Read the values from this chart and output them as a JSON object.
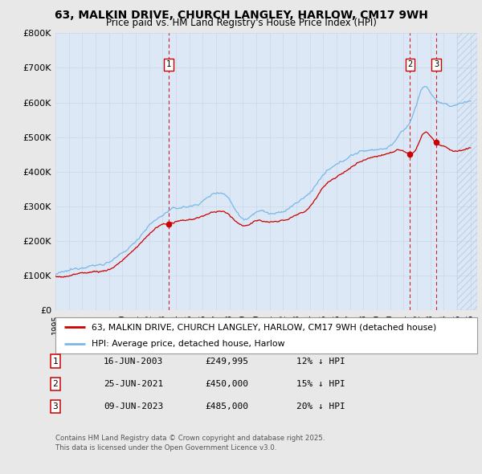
{
  "title_line1": "63, MALKIN DRIVE, CHURCH LANGLEY, HARLOW, CM17 9WH",
  "title_line2": "Price paid vs. HM Land Registry's House Price Index (HPI)",
  "ylim": [
    0,
    800000
  ],
  "ytick_values": [
    0,
    100000,
    200000,
    300000,
    400000,
    500000,
    600000,
    700000,
    800000
  ],
  "ytick_labels": [
    "£0",
    "£100K",
    "£200K",
    "£300K",
    "£400K",
    "£500K",
    "£600K",
    "£700K",
    "£800K"
  ],
  "hpi_color": "#7ab8e8",
  "price_color": "#cc0000",
  "dashed_color": "#cc0000",
  "grid_color": "#c8d8e8",
  "bg_color": "#e8e8e8",
  "plot_bg_color": "#dce8f5",
  "legend_label_house": "63, MALKIN DRIVE, CHURCH LANGLEY, HARLOW, CM17 9WH (detached house)",
  "legend_label_hpi": "HPI: Average price, detached house, Harlow",
  "transactions": [
    {
      "num": 1,
      "date": "16-JUN-2003",
      "price": "£249,995",
      "pct": "12% ↓ HPI",
      "x_year": 2003.46,
      "y_val": 249995
    },
    {
      "num": 2,
      "date": "25-JUN-2021",
      "price": "£450,000",
      "pct": "15% ↓ HPI",
      "x_year": 2021.48,
      "y_val": 450000
    },
    {
      "num": 3,
      "date": "09-JUN-2023",
      "price": "£485,000",
      "pct": "20% ↓ HPI",
      "x_year": 2023.44,
      "y_val": 485000
    }
  ],
  "footnote1": "Contains HM Land Registry data © Crown copyright and database right 2025.",
  "footnote2": "This data is licensed under the Open Government Licence v3.0.",
  "xmin": 1995.0,
  "xmax": 2026.5
}
